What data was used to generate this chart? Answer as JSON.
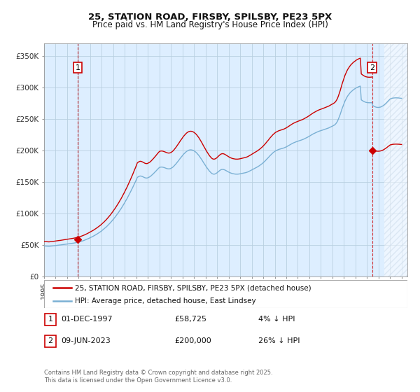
{
  "title": "25, STATION ROAD, FIRSBY, SPILSBY, PE23 5PX",
  "subtitle": "Price paid vs. HM Land Registry's House Price Index (HPI)",
  "xlim_start": 1995.0,
  "xlim_end": 2026.5,
  "ylim": [
    0,
    370000
  ],
  "yticks": [
    0,
    50000,
    100000,
    150000,
    200000,
    250000,
    300000,
    350000
  ],
  "ytick_labels": [
    "£0",
    "£50K",
    "£100K",
    "£150K",
    "£200K",
    "£250K",
    "£300K",
    "£350K"
  ],
  "sale1_date": 1997.92,
  "sale1_price": 58725,
  "sale2_date": 2023.44,
  "sale2_price": 200000,
  "legend_line1": "25, STATION ROAD, FIRSBY, SPILSBY, PE23 5PX (detached house)",
  "legend_line2": "HPI: Average price, detached house, East Lindsey",
  "sale_color": "#cc0000",
  "hpi_color": "#7ab0d4",
  "table_row1": [
    "1",
    "01-DEC-1997",
    "£58,725",
    "4% ↓ HPI"
  ],
  "table_row2": [
    "2",
    "09-JUN-2023",
    "£200,000",
    "26% ↓ HPI"
  ],
  "footer": "Contains HM Land Registry data © Crown copyright and database right 2025.\nThis data is licensed under the Open Government Licence v3.0.",
  "bg_color": "#ddeeff",
  "hatch_color": "#c8d8e8",
  "grid_color": "#b8cfe0",
  "hpi_at_sale1": 51200,
  "hpi_at_sale2": 270000,
  "hpi_data": [
    [
      1995.0,
      48000
    ],
    [
      1995.08,
      48100
    ],
    [
      1995.17,
      48000
    ],
    [
      1995.25,
      47900
    ],
    [
      1995.33,
      47800
    ],
    [
      1995.42,
      47700
    ],
    [
      1995.5,
      47900
    ],
    [
      1995.58,
      48000
    ],
    [
      1995.67,
      48100
    ],
    [
      1995.75,
      48300
    ],
    [
      1995.83,
      48500
    ],
    [
      1995.92,
      48800
    ],
    [
      1996.0,
      49000
    ],
    [
      1996.08,
      49100
    ],
    [
      1996.17,
      49300
    ],
    [
      1996.25,
      49500
    ],
    [
      1996.33,
      49600
    ],
    [
      1996.42,
      49800
    ],
    [
      1996.5,
      50000
    ],
    [
      1996.58,
      50200
    ],
    [
      1996.67,
      50400
    ],
    [
      1996.75,
      50600
    ],
    [
      1996.83,
      50800
    ],
    [
      1996.92,
      51000
    ],
    [
      1997.0,
      51200
    ],
    [
      1997.08,
      51400
    ],
    [
      1997.17,
      51600
    ],
    [
      1997.25,
      51800
    ],
    [
      1997.33,
      52000
    ],
    [
      1997.42,
      52200
    ],
    [
      1997.5,
      52500
    ],
    [
      1997.58,
      52800
    ],
    [
      1997.67,
      53100
    ],
    [
      1997.75,
      53400
    ],
    [
      1997.83,
      53700
    ],
    [
      1997.92,
      54000
    ],
    [
      1998.0,
      54400
    ],
    [
      1998.08,
      54800
    ],
    [
      1998.17,
      55200
    ],
    [
      1998.25,
      55700
    ],
    [
      1998.33,
      56200
    ],
    [
      1998.42,
      56700
    ],
    [
      1998.5,
      57300
    ],
    [
      1998.58,
      57900
    ],
    [
      1998.67,
      58500
    ],
    [
      1998.75,
      59200
    ],
    [
      1998.83,
      59900
    ],
    [
      1998.92,
      60600
    ],
    [
      1999.0,
      61400
    ],
    [
      1999.08,
      62100
    ],
    [
      1999.17,
      62800
    ],
    [
      1999.25,
      63600
    ],
    [
      1999.33,
      64400
    ],
    [
      1999.42,
      65300
    ],
    [
      1999.5,
      66200
    ],
    [
      1999.58,
      67100
    ],
    [
      1999.67,
      68100
    ],
    [
      1999.75,
      69100
    ],
    [
      1999.83,
      70100
    ],
    [
      1999.92,
      71200
    ],
    [
      2000.0,
      72400
    ],
    [
      2000.08,
      73600
    ],
    [
      2000.17,
      74800
    ],
    [
      2000.25,
      76100
    ],
    [
      2000.33,
      77500
    ],
    [
      2000.42,
      78900
    ],
    [
      2000.5,
      80400
    ],
    [
      2000.58,
      81900
    ],
    [
      2000.67,
      83500
    ],
    [
      2000.75,
      85100
    ],
    [
      2000.83,
      86800
    ],
    [
      2000.92,
      88600
    ],
    [
      2001.0,
      90500
    ],
    [
      2001.08,
      92400
    ],
    [
      2001.17,
      94300
    ],
    [
      2001.25,
      96300
    ],
    [
      2001.33,
      98400
    ],
    [
      2001.42,
      100500
    ],
    [
      2001.5,
      102700
    ],
    [
      2001.58,
      105000
    ],
    [
      2001.67,
      107300
    ],
    [
      2001.75,
      109700
    ],
    [
      2001.83,
      112200
    ],
    [
      2001.92,
      114700
    ],
    [
      2002.0,
      117300
    ],
    [
      2002.08,
      120000
    ],
    [
      2002.17,
      122700
    ],
    [
      2002.25,
      125500
    ],
    [
      2002.33,
      128400
    ],
    [
      2002.42,
      131300
    ],
    [
      2002.5,
      134300
    ],
    [
      2002.58,
      137400
    ],
    [
      2002.67,
      140500
    ],
    [
      2002.75,
      143700
    ],
    [
      2002.83,
      146900
    ],
    [
      2002.92,
      150200
    ],
    [
      2003.0,
      153500
    ],
    [
      2003.08,
      156900
    ],
    [
      2003.17,
      158000
    ],
    [
      2003.25,
      158800
    ],
    [
      2003.33,
      159200
    ],
    [
      2003.42,
      159000
    ],
    [
      2003.5,
      158500
    ],
    [
      2003.58,
      157800
    ],
    [
      2003.67,
      157000
    ],
    [
      2003.75,
      156400
    ],
    [
      2003.83,
      156000
    ],
    [
      2003.92,
      156000
    ],
    [
      2004.0,
      156400
    ],
    [
      2004.08,
      157100
    ],
    [
      2004.17,
      158000
    ],
    [
      2004.25,
      159100
    ],
    [
      2004.33,
      160400
    ],
    [
      2004.42,
      161800
    ],
    [
      2004.5,
      163300
    ],
    [
      2004.58,
      164900
    ],
    [
      2004.67,
      166500
    ],
    [
      2004.75,
      168100
    ],
    [
      2004.83,
      169700
    ],
    [
      2004.92,
      171300
    ],
    [
      2005.0,
      172800
    ],
    [
      2005.08,
      173200
    ],
    [
      2005.17,
      173400
    ],
    [
      2005.25,
      173300
    ],
    [
      2005.33,
      173000
    ],
    [
      2005.42,
      172500
    ],
    [
      2005.5,
      172000
    ],
    [
      2005.58,
      171400
    ],
    [
      2005.67,
      170900
    ],
    [
      2005.75,
      170600
    ],
    [
      2005.83,
      170500
    ],
    [
      2005.92,
      170800
    ],
    [
      2006.0,
      171300
    ],
    [
      2006.08,
      172200
    ],
    [
      2006.17,
      173400
    ],
    [
      2006.25,
      174800
    ],
    [
      2006.33,
      176400
    ],
    [
      2006.42,
      178200
    ],
    [
      2006.5,
      180000
    ],
    [
      2006.58,
      181900
    ],
    [
      2006.67,
      183900
    ],
    [
      2006.75,
      185900
    ],
    [
      2006.83,
      187900
    ],
    [
      2006.92,
      189800
    ],
    [
      2007.0,
      191700
    ],
    [
      2007.08,
      193500
    ],
    [
      2007.17,
      195100
    ],
    [
      2007.25,
      196600
    ],
    [
      2007.33,
      197900
    ],
    [
      2007.42,
      199000
    ],
    [
      2007.5,
      199800
    ],
    [
      2007.58,
      200400
    ],
    [
      2007.67,
      200700
    ],
    [
      2007.75,
      200700
    ],
    [
      2007.83,
      200400
    ],
    [
      2007.92,
      199900
    ],
    [
      2008.0,
      199100
    ],
    [
      2008.08,
      198100
    ],
    [
      2008.17,
      196800
    ],
    [
      2008.25,
      195300
    ],
    [
      2008.33,
      193600
    ],
    [
      2008.42,
      191700
    ],
    [
      2008.5,
      189600
    ],
    [
      2008.58,
      187400
    ],
    [
      2008.67,
      185100
    ],
    [
      2008.75,
      182700
    ],
    [
      2008.83,
      180300
    ],
    [
      2008.92,
      177900
    ],
    [
      2009.0,
      175600
    ],
    [
      2009.08,
      173300
    ],
    [
      2009.17,
      171100
    ],
    [
      2009.25,
      169000
    ],
    [
      2009.33,
      167100
    ],
    [
      2009.42,
      165400
    ],
    [
      2009.5,
      163900
    ],
    [
      2009.58,
      162800
    ],
    [
      2009.67,
      162200
    ],
    [
      2009.75,
      162100
    ],
    [
      2009.83,
      162500
    ],
    [
      2009.92,
      163300
    ],
    [
      2010.0,
      164400
    ],
    [
      2010.08,
      165700
    ],
    [
      2010.17,
      167000
    ],
    [
      2010.25,
      168200
    ],
    [
      2010.33,
      169100
    ],
    [
      2010.42,
      169600
    ],
    [
      2010.5,
      169700
    ],
    [
      2010.58,
      169400
    ],
    [
      2010.67,
      168800
    ],
    [
      2010.75,
      168000
    ],
    [
      2010.83,
      167200
    ],
    [
      2010.92,
      166300
    ],
    [
      2011.0,
      165500
    ],
    [
      2011.08,
      164700
    ],
    [
      2011.17,
      164000
    ],
    [
      2011.25,
      163500
    ],
    [
      2011.33,
      163000
    ],
    [
      2011.42,
      162700
    ],
    [
      2011.5,
      162400
    ],
    [
      2011.58,
      162200
    ],
    [
      2011.67,
      162100
    ],
    [
      2011.75,
      162100
    ],
    [
      2011.83,
      162200
    ],
    [
      2011.92,
      162400
    ],
    [
      2012.0,
      162700
    ],
    [
      2012.08,
      163000
    ],
    [
      2012.17,
      163300
    ],
    [
      2012.25,
      163600
    ],
    [
      2012.33,
      163900
    ],
    [
      2012.42,
      164200
    ],
    [
      2012.5,
      164600
    ],
    [
      2012.58,
      165100
    ],
    [
      2012.67,
      165700
    ],
    [
      2012.75,
      166400
    ],
    [
      2012.83,
      167200
    ],
    [
      2012.92,
      168000
    ],
    [
      2013.0,
      168800
    ],
    [
      2013.08,
      169600
    ],
    [
      2013.17,
      170400
    ],
    [
      2013.25,
      171200
    ],
    [
      2013.33,
      172000
    ],
    [
      2013.42,
      172800
    ],
    [
      2013.5,
      173700
    ],
    [
      2013.58,
      174600
    ],
    [
      2013.67,
      175600
    ],
    [
      2013.75,
      176700
    ],
    [
      2013.83,
      177800
    ],
    [
      2013.92,
      179000
    ],
    [
      2014.0,
      180300
    ],
    [
      2014.08,
      181700
    ],
    [
      2014.17,
      183200
    ],
    [
      2014.25,
      184800
    ],
    [
      2014.33,
      186400
    ],
    [
      2014.42,
      188000
    ],
    [
      2014.5,
      189700
    ],
    [
      2014.58,
      191300
    ],
    [
      2014.67,
      192900
    ],
    [
      2014.75,
      194400
    ],
    [
      2014.83,
      195800
    ],
    [
      2014.92,
      197100
    ],
    [
      2015.0,
      198200
    ],
    [
      2015.08,
      199200
    ],
    [
      2015.17,
      200000
    ],
    [
      2015.25,
      200700
    ],
    [
      2015.33,
      201300
    ],
    [
      2015.42,
      201800
    ],
    [
      2015.5,
      202200
    ],
    [
      2015.58,
      202600
    ],
    [
      2015.67,
      203000
    ],
    [
      2015.75,
      203500
    ],
    [
      2015.83,
      204000
    ],
    [
      2015.92,
      204700
    ],
    [
      2016.0,
      205400
    ],
    [
      2016.08,
      206200
    ],
    [
      2016.17,
      207100
    ],
    [
      2016.25,
      208000
    ],
    [
      2016.33,
      208900
    ],
    [
      2016.42,
      209800
    ],
    [
      2016.5,
      210600
    ],
    [
      2016.58,
      211400
    ],
    [
      2016.67,
      212100
    ],
    [
      2016.75,
      212700
    ],
    [
      2016.83,
      213300
    ],
    [
      2016.92,
      213900
    ],
    [
      2017.0,
      214400
    ],
    [
      2017.08,
      214900
    ],
    [
      2017.17,
      215400
    ],
    [
      2017.25,
      215900
    ],
    [
      2017.33,
      216400
    ],
    [
      2017.42,
      217000
    ],
    [
      2017.5,
      217600
    ],
    [
      2017.58,
      218300
    ],
    [
      2017.67,
      219000
    ],
    [
      2017.75,
      219800
    ],
    [
      2017.83,
      220600
    ],
    [
      2017.92,
      221500
    ],
    [
      2018.0,
      222400
    ],
    [
      2018.08,
      223300
    ],
    [
      2018.17,
      224200
    ],
    [
      2018.25,
      225100
    ],
    [
      2018.33,
      226000
    ],
    [
      2018.42,
      226800
    ],
    [
      2018.5,
      227600
    ],
    [
      2018.58,
      228300
    ],
    [
      2018.67,
      229000
    ],
    [
      2018.75,
      229600
    ],
    [
      2018.83,
      230200
    ],
    [
      2018.92,
      230700
    ],
    [
      2019.0,
      231200
    ],
    [
      2019.08,
      231700
    ],
    [
      2019.17,
      232200
    ],
    [
      2019.25,
      232700
    ],
    [
      2019.33,
      233200
    ],
    [
      2019.42,
      233700
    ],
    [
      2019.5,
      234200
    ],
    [
      2019.58,
      234800
    ],
    [
      2019.67,
      235400
    ],
    [
      2019.75,
      236100
    ],
    [
      2019.83,
      236800
    ],
    [
      2019.92,
      237600
    ],
    [
      2020.0,
      238400
    ],
    [
      2020.08,
      239200
    ],
    [
      2020.17,
      240000
    ],
    [
      2020.25,
      241200
    ],
    [
      2020.33,
      243000
    ],
    [
      2020.42,
      245500
    ],
    [
      2020.5,
      248700
    ],
    [
      2020.58,
      252500
    ],
    [
      2020.67,
      256700
    ],
    [
      2020.75,
      261200
    ],
    [
      2020.83,
      265700
    ],
    [
      2020.92,
      270000
    ],
    [
      2021.0,
      274000
    ],
    [
      2021.08,
      277700
    ],
    [
      2021.17,
      281000
    ],
    [
      2021.25,
      283900
    ],
    [
      2021.33,
      286400
    ],
    [
      2021.42,
      288600
    ],
    [
      2021.5,
      290500
    ],
    [
      2021.58,
      292200
    ],
    [
      2021.67,
      293700
    ],
    [
      2021.75,
      295000
    ],
    [
      2021.83,
      296200
    ],
    [
      2021.92,
      297300
    ],
    [
      2022.0,
      298300
    ],
    [
      2022.08,
      299200
    ],
    [
      2022.17,
      300000
    ],
    [
      2022.25,
      300700
    ],
    [
      2022.33,
      301300
    ],
    [
      2022.42,
      301800
    ],
    [
      2022.5,
      280000
    ],
    [
      2022.58,
      279000
    ],
    [
      2022.67,
      278000
    ],
    [
      2022.75,
      277200
    ],
    [
      2022.83,
      276500
    ],
    [
      2022.92,
      276000
    ],
    [
      2023.0,
      275700
    ],
    [
      2023.08,
      275500
    ],
    [
      2023.17,
      275400
    ],
    [
      2023.25,
      275400
    ],
    [
      2023.33,
      275500
    ],
    [
      2023.42,
      275700
    ],
    [
      2023.5,
      271000
    ],
    [
      2023.58,
      270000
    ],
    [
      2023.67,
      269200
    ],
    [
      2023.75,
      268600
    ],
    [
      2023.83,
      268200
    ],
    [
      2023.92,
      268000
    ],
    [
      2024.0,
      268000
    ],
    [
      2024.08,
      268200
    ],
    [
      2024.17,
      268600
    ],
    [
      2024.25,
      269200
    ],
    [
      2024.33,
      270000
    ],
    [
      2024.42,
      271000
    ],
    [
      2024.5,
      272200
    ],
    [
      2024.58,
      273500
    ],
    [
      2024.67,
      275000
    ],
    [
      2024.75,
      276600
    ],
    [
      2024.83,
      278200
    ],
    [
      2024.92,
      279800
    ],
    [
      2025.0,
      281400
    ],
    [
      2025.17,
      282500
    ],
    [
      2025.33,
      283000
    ],
    [
      2025.5,
      283200
    ],
    [
      2025.67,
      283100
    ],
    [
      2025.83,
      282800
    ],
    [
      2026.0,
      282400
    ]
  ]
}
